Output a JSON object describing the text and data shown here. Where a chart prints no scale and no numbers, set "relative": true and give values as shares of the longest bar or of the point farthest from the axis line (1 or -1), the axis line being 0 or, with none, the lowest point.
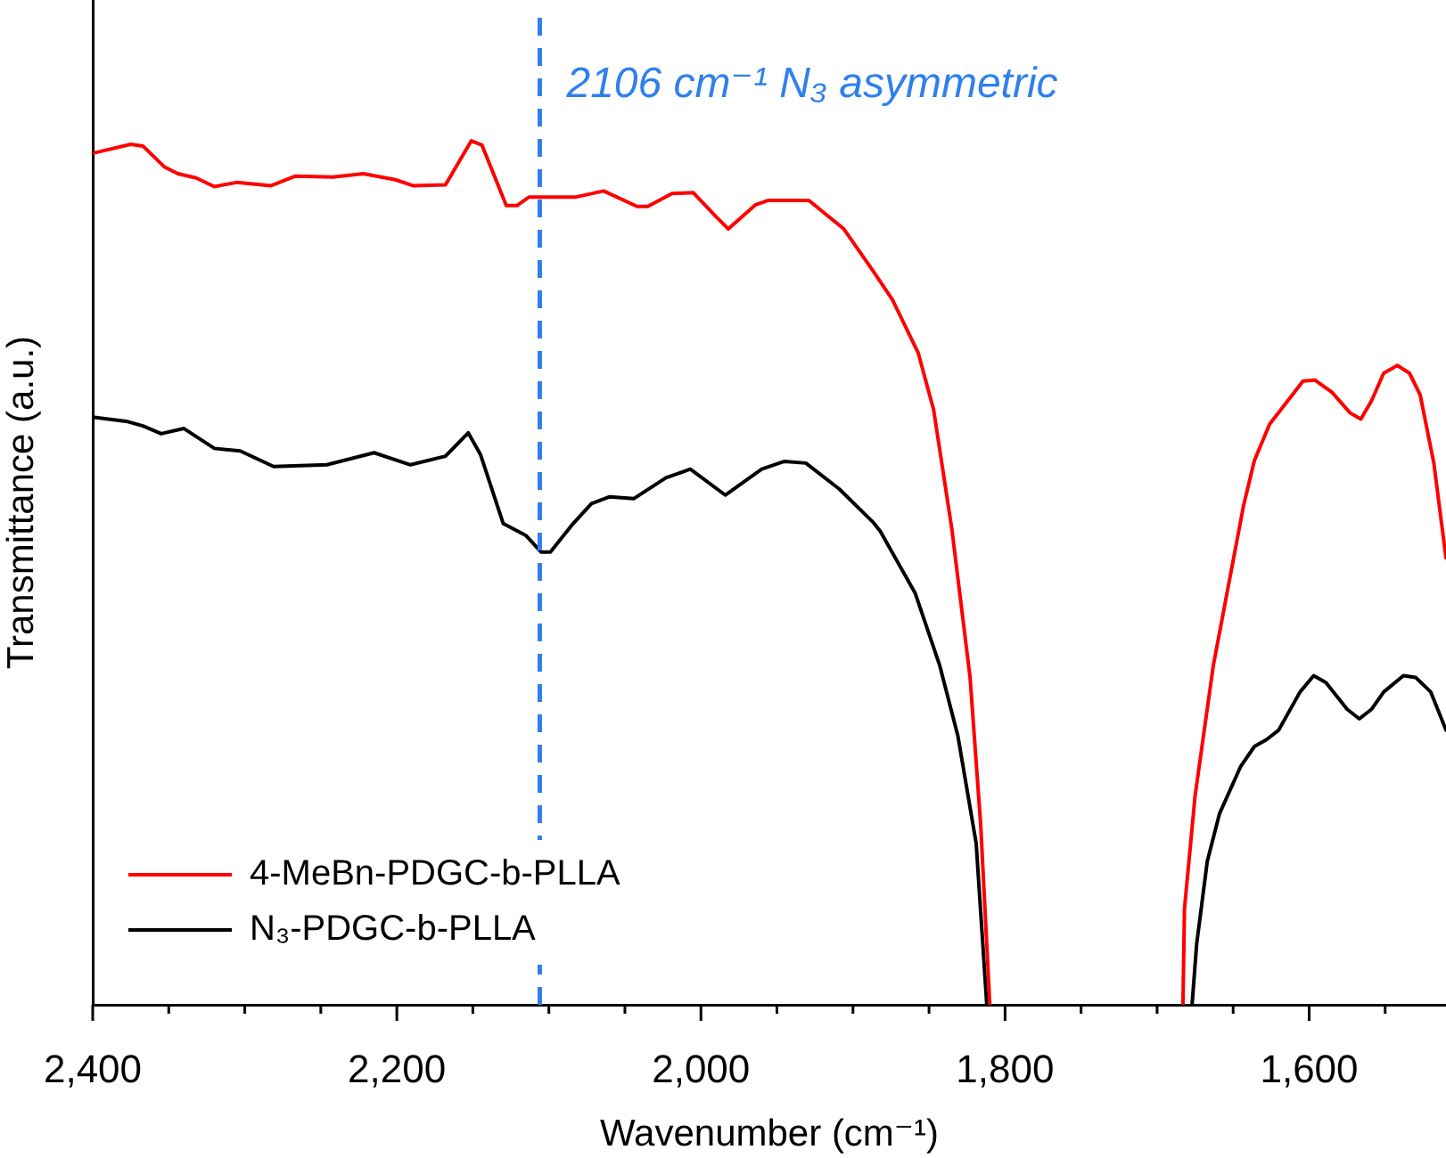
{
  "chart_data": {
    "type": "line",
    "relative": true,
    "xlabel": "Wavenumber (cm⁻¹)",
    "ylabel": "Transmittance (a.u.)",
    "xlim": [
      2400,
      1510
    ],
    "xticks": [
      {
        "value": 2400,
        "label": "2,400"
      },
      {
        "value": 2350,
        "label": null
      },
      {
        "value": 2300,
        "label": null
      },
      {
        "value": 2250,
        "label": null
      },
      {
        "value": 2200,
        "label": "2,200"
      },
      {
        "value": 2150,
        "label": null
      },
      {
        "value": 2100,
        "label": null
      },
      {
        "value": 2050,
        "label": null
      },
      {
        "value": 2000,
        "label": "2,000"
      },
      {
        "value": 1950,
        "label": null
      },
      {
        "value": 1900,
        "label": null
      },
      {
        "value": 1850,
        "label": null
      },
      {
        "value": 1800,
        "label": "1,800"
      },
      {
        "value": 1750,
        "label": null
      },
      {
        "value": 1700,
        "label": null
      },
      {
        "value": 1650,
        "label": null
      },
      {
        "value": 1600,
        "label": "1,600"
      },
      {
        "value": 1550,
        "label": null
      }
    ],
    "grid": false,
    "legend": "bottom left",
    "marker": "none",
    "line_style": "solid",
    "ref_lines": [
      {
        "axis": "x",
        "value": 2106,
        "label": "2106 cm⁻¹ N₃ asymmetric",
        "color": "#2f80ed",
        "line_style": "dashed"
      }
    ],
    "series": [
      {
        "name": "4-MeBn-PDGC-b-PLLA",
        "color": "#ff0000",
        "x": [
          2399,
          2375,
          2367,
          2353,
          2344,
          2332,
          2320,
          2305,
          2283,
          2267,
          2242,
          2222,
          2201,
          2189,
          2168,
          2151,
          2144,
          2128,
          2121,
          2113,
          2101,
          2082,
          2064,
          2042,
          2035,
          2019,
          2005,
          1990,
          1982,
          1964,
          1956,
          1929,
          1906,
          1887,
          1874,
          1857,
          1847,
          1835,
          1823,
          1816,
          1810,
          1750,
          1683,
          1682,
          1675,
          1663,
          1643,
          1636,
          1626,
          1604,
          1596,
          1585,
          1573,
          1566,
          1559,
          1551,
          1542,
          1534,
          1527,
          1518,
          1510
        ],
        "values": [
          0.986,
          0.996,
          0.994,
          0.97,
          0.962,
          0.957,
          0.947,
          0.952,
          0.948,
          0.959,
          0.958,
          0.962,
          0.955,
          0.948,
          0.949,
          1,
          0.995,
          0.925,
          0.925,
          0.935,
          0.935,
          0.935,
          0.942,
          0.924,
          0.924,
          0.939,
          0.94,
          0.912,
          0.898,
          0.926,
          0.931,
          0.931,
          0.898,
          0.85,
          0.816,
          0.754,
          0.689,
          0.551,
          0.379,
          0.208,
          0,
          null,
          0,
          0.111,
          0.242,
          0.393,
          0.579,
          0.63,
          0.672,
          0.722,
          0.723,
          0.709,
          0.685,
          0.678,
          0.699,
          0.731,
          0.74,
          0.731,
          0.706,
          0.627,
          0.517
        ]
      },
      {
        "name": "N₃-PDGC-b-PLLA",
        "color": "#000000",
        "x": [
          2399,
          2377,
          2367,
          2355,
          2340,
          2320,
          2303,
          2281,
          2246,
          2215,
          2191,
          2168,
          2153,
          2145,
          2130,
          2115,
          2105,
          2099,
          2085,
          2072,
          2060,
          2044,
          2023,
          2007,
          1984,
          1960,
          1945,
          1931,
          1909,
          1887,
          1882,
          1859,
          1843,
          1831,
          1819,
          1812,
          1750,
          1677,
          1674,
          1667,
          1659,
          1645,
          1636,
          1628,
          1620,
          1606,
          1597,
          1589,
          1575,
          1567,
          1559,
          1551,
          1538,
          1530,
          1520,
          1510
        ],
        "values": [
          0.68,
          0.675,
          0.67,
          0.661,
          0.667,
          0.644,
          0.641,
          0.623,
          0.625,
          0.639,
          0.625,
          0.635,
          0.662,
          0.637,
          0.557,
          0.543,
          0.524,
          0.524,
          0.555,
          0.58,
          0.588,
          0.586,
          0.61,
          0.62,
          0.59,
          0.62,
          0.629,
          0.627,
          0.597,
          0.559,
          0.548,
          0.476,
          0.393,
          0.311,
          0.187,
          0,
          null,
          0,
          0.07,
          0.166,
          0.221,
          0.276,
          0.299,
          0.307,
          0.318,
          0.362,
          0.381,
          0.373,
          0.342,
          0.331,
          0.342,
          0.362,
          0.381,
          0.379,
          0.362,
          0.318
        ]
      }
    ]
  }
}
